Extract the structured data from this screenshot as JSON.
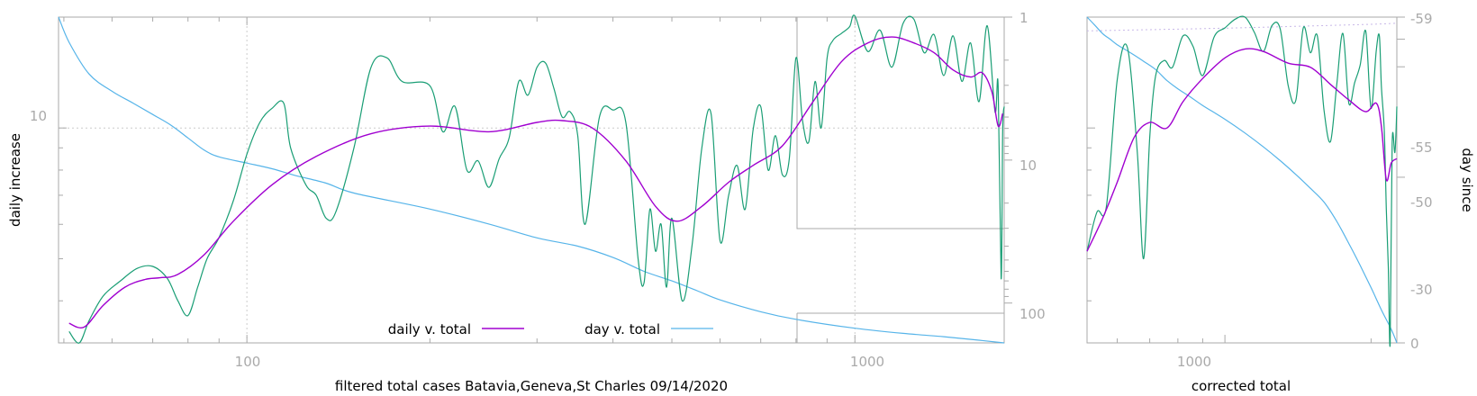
{
  "chart_data": [
    {
      "type": "line",
      "title": "",
      "xlabel": "filtered total cases Batavia,Geneva,St Charles 09/14/2020",
      "ylabel": "daily increase",
      "x_scale": "log",
      "y_scale": "log",
      "y2_scale": "log-reversed",
      "xlim": [
        49,
        1760
      ],
      "ylim": [
        3.2,
        18
      ],
      "y2lim": [
        1,
        190
      ],
      "x_ticks": [
        "100",
        "1000"
      ],
      "y_ticks": [
        "10"
      ],
      "y2_ticks": [
        "1",
        "10",
        "100"
      ],
      "grid": true,
      "legend_position": "bottom-center",
      "colors": {
        "green": "#1a9e75",
        "purple": "#a000d0",
        "blue": "#56b4e9",
        "axis": "#aaaaaa",
        "grid": "#cccccc"
      },
      "series": [
        {
          "name": "daily v. total",
          "color": "#a000d0",
          "x": [
            51,
            54,
            58,
            63,
            68,
            72,
            77,
            85,
            95,
            110,
            130,
            160,
            200,
            250,
            300,
            330,
            370,
            420,
            470,
            510,
            560,
            620,
            680,
            760,
            850,
            950,
            1050,
            1150,
            1250,
            1350,
            1450,
            1550,
            1620,
            1680,
            1720,
            1750
          ],
          "values": [
            3.55,
            3.48,
            3.9,
            4.3,
            4.48,
            4.52,
            4.6,
            5.1,
            6.1,
            7.4,
            8.6,
            9.7,
            10.1,
            9.8,
            10.3,
            10.4,
            10.0,
            8.4,
            6.6,
            6.1,
            6.6,
            7.5,
            8.2,
            9.1,
            11.4,
            14.2,
            15.7,
            16.2,
            15.7,
            14.9,
            13.6,
            13.1,
            13.4,
            12.1,
            10.1,
            10.8
          ]
        },
        {
          "name": "day v. total",
          "color": "#56b4e9",
          "axis": "y2",
          "x": [
            49,
            51,
            55,
            60,
            65,
            70,
            75,
            80,
            85,
            90,
            100,
            110,
            120,
            135,
            150,
            200,
            250,
            300,
            350,
            400,
            450,
            500,
            550,
            600,
            700,
            800,
            1000,
            1200,
            1400,
            1600,
            1760
          ],
          "values": [
            1,
            1.5,
            2.5,
            3.3,
            4.0,
            4.8,
            5.7,
            7.0,
            8.5,
            9.5,
            10.5,
            11.5,
            12.8,
            14.5,
            17.0,
            22.0,
            28.0,
            35.0,
            40.0,
            48.0,
            60.0,
            70.0,
            82.0,
            95.0,
            115.0,
            130.0,
            150.0,
            163.0,
            172.0,
            182.0,
            190.0
          ]
        },
        {
          "color": "#1a9e75",
          "x": [
            51,
            53,
            55,
            58,
            62,
            66,
            70,
            74,
            77,
            80,
            83,
            86,
            90,
            95,
            100,
            105,
            110,
            115,
            118,
            125,
            130,
            135,
            140,
            150,
            160,
            170,
            180,
            200,
            210,
            220,
            230,
            240,
            250,
            260,
            270,
            280,
            290,
            300,
            310,
            320,
            330,
            340,
            350,
            360,
            380,
            400,
            420,
            440,
            450,
            460,
            470,
            480,
            490,
            500,
            520,
            540,
            560,
            580,
            600,
            620,
            640,
            660,
            680,
            700,
            720,
            740,
            760,
            780,
            800,
            820,
            840,
            860,
            880,
            900,
            920,
            950,
            980,
            1000,
            1050,
            1100,
            1150,
            1200,
            1250,
            1300,
            1350,
            1400,
            1450,
            1500,
            1550,
            1600,
            1650,
            1700,
            1720,
            1740,
            1750,
            1760
          ],
          "values": [
            3.4,
            3.2,
            3.6,
            4.1,
            4.45,
            4.75,
            4.8,
            4.5,
            4.0,
            3.7,
            4.3,
            5.0,
            5.6,
            6.8,
            8.7,
            10.3,
            11.1,
            11.4,
            9.0,
            7.4,
            7.0,
            6.2,
            6.4,
            9.0,
            13.8,
            14.5,
            12.8,
            12.5,
            9.8,
            11.2,
            8.0,
            8.4,
            7.3,
            8.5,
            9.5,
            12.8,
            11.9,
            13.8,
            14.1,
            12.3,
            10.6,
            10.9,
            9.6,
            6.0,
            10.6,
            11.0,
            10.3,
            5.0,
            4.4,
            6.5,
            5.2,
            6.0,
            4.3,
            6.2,
            4.0,
            5.4,
            9.0,
            10.8,
            5.5,
            7.0,
            8.2,
            6.5,
            9.9,
            11.2,
            8.0,
            9.6,
            7.8,
            8.5,
            14.5,
            10.4,
            9.3,
            12.8,
            10.0,
            14.5,
            15.9,
            16.5,
            17.1,
            18.1,
            15.0,
            16.8,
            13.8,
            17.4,
            17.8,
            14.9,
            16.4,
            13.2,
            16.3,
            12.8,
            15.7,
            11.5,
            17.2,
            10.9,
            12.5,
            4.5,
            9.8,
            11.2
          ]
        }
      ]
    },
    {
      "type": "line",
      "title": "",
      "xlabel": "corrected total",
      "ylabel": "day since",
      "x_scale": "log",
      "xlim": [
        520,
        2260
      ],
      "ylim": [
        3.2,
        18
      ],
      "y2lim": [
        0,
        -59
      ],
      "x_ticks": [
        "1000"
      ],
      "y2_ticks": [
        "-59",
        "-55",
        "-50",
        "-30",
        "0"
      ],
      "grid": true,
      "colors": {
        "green": "#1a9e75",
        "purple": "#a000d0",
        "blue": "#56b4e9",
        "axis": "#aaaaaa"
      },
      "series": [
        {
          "color": "#a000d0",
          "x": [
            520,
            560,
            600,
            650,
            700,
            760,
            820,
            900,
            1000,
            1100,
            1200,
            1350,
            1500,
            1650,
            1800,
            1950,
            2050,
            2100,
            2150,
            2200,
            2260
          ],
          "values": [
            5.2,
            6.2,
            7.5,
            9.5,
            10.3,
            10.0,
            11.5,
            13.0,
            14.5,
            15.2,
            15.0,
            14.1,
            13.8,
            12.6,
            11.6,
            10.9,
            11.4,
            10.1,
            7.6,
            8.3,
            8.5
          ]
        },
        {
          "color": "#56b4e9",
          "axis": "y2",
          "x": [
            520,
            540,
            560,
            580,
            600,
            640,
            680,
            720,
            760,
            800,
            850,
            900,
            1000,
            1100,
            1200,
            1300,
            1400,
            1500,
            1600,
            1700,
            1800,
            1900,
            2000,
            2100,
            2200,
            2260
          ],
          "values": [
            -59,
            -57.5,
            -56,
            -55,
            -54,
            -52.5,
            -51,
            -49.5,
            -47.5,
            -46,
            -44.5,
            -43,
            -40.5,
            -38,
            -35.5,
            -33,
            -30.5,
            -28,
            -25.5,
            -22,
            -18,
            -14,
            -10,
            -6,
            -2.5,
            0
          ]
        },
        {
          "color": "#1a9e75",
          "x": [
            520,
            545,
            570,
            600,
            630,
            660,
            680,
            700,
            720,
            750,
            780,
            820,
            860,
            900,
            950,
            1000,
            1050,
            1100,
            1150,
            1200,
            1250,
            1300,
            1350,
            1400,
            1450,
            1500,
            1550,
            1600,
            1650,
            1700,
            1750,
            1800,
            1850,
            1900,
            1950,
            2000,
            2050,
            2080,
            2100,
            2130,
            2150,
            2170,
            2190,
            2210,
            2240,
            2260
          ],
          "values": [
            5.2,
            6.4,
            6.6,
            12.9,
            15.3,
            8.8,
            5.0,
            9.5,
            13.2,
            14.3,
            13.8,
            16.3,
            15.4,
            13.2,
            16.2,
            17.0,
            17.8,
            18.0,
            16.6,
            15.0,
            17.2,
            16.9,
            12.5,
            11.6,
            17.0,
            14.9,
            16.3,
            11.0,
            9.3,
            12.6,
            16.5,
            11.4,
            12.7,
            14.0,
            16.7,
            11.1,
            15.1,
            16.3,
            12.5,
            9.8,
            6.5,
            4.8,
            3.2,
            9.2,
            8.8,
            11.2
          ]
        }
      ],
      "y2_line": {
        "x": [
          520,
          1000,
          1500,
          2000,
          2260
        ],
        "values": [
          -56.5,
          -57,
          -57.4,
          -57.7,
          -57.9
        ]
      }
    }
  ]
}
